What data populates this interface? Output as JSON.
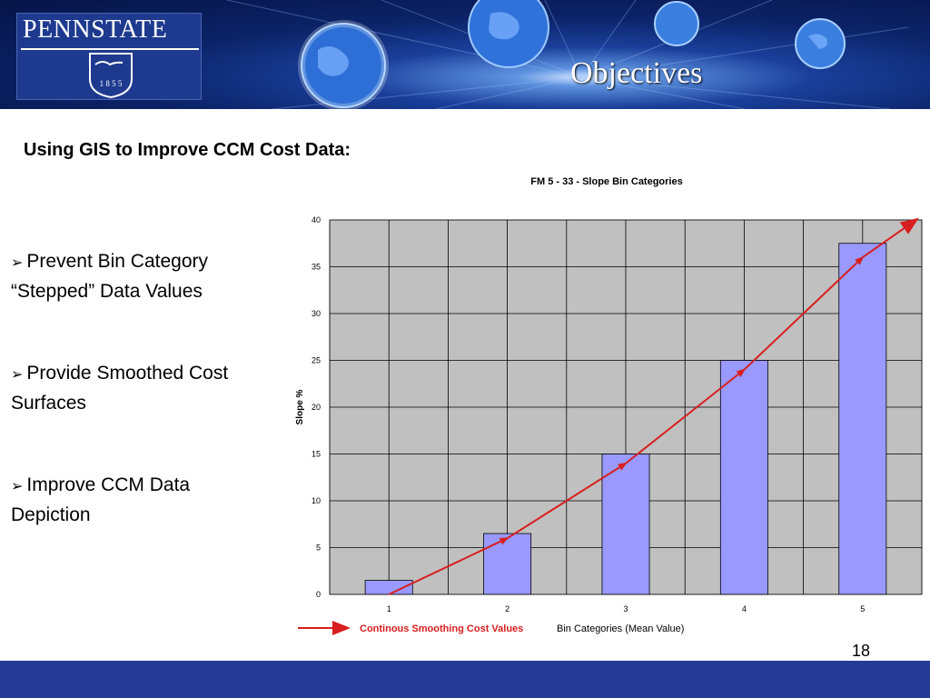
{
  "header": {
    "logo_text": "PENNSTATE",
    "logo_year": "1 8 5 5",
    "title": "Objectives"
  },
  "subtitle": "Using GIS to Improve CCM Cost Data:",
  "bullets": [
    "Prevent Bin Category “Stepped” Data Values",
    "Provide Smoothed Cost Surfaces",
    "Improve CCM Data Depiction"
  ],
  "bullet_marker": "➢",
  "page_number": "18",
  "colors": {
    "bar_fill": "#9999ff",
    "plot_bg": "#c0c0c0",
    "trend_line": "#d81e1e",
    "footer": "#253b96",
    "banner": "#0b2368"
  },
  "chart_data": {
    "type": "bar",
    "title": "FM 5 - 33 - Slope Bin Categories",
    "xlabel": "Bin Categories (Mean Value)",
    "ylabel": "Slope %",
    "categories": [
      "1",
      "2",
      "3",
      "4",
      "5"
    ],
    "values": [
      1.5,
      6.5,
      15,
      25,
      37.5
    ],
    "ylim": [
      0,
      40
    ],
    "yticks": [
      0,
      5,
      10,
      15,
      20,
      25,
      30,
      35,
      40
    ],
    "grid": true,
    "trend": {
      "name": "Continous Smoothing Cost Values",
      "x": [
        1,
        2,
        3,
        4,
        5,
        5.45
      ],
      "y": [
        0,
        6,
        14,
        24,
        36,
        40
      ]
    }
  }
}
